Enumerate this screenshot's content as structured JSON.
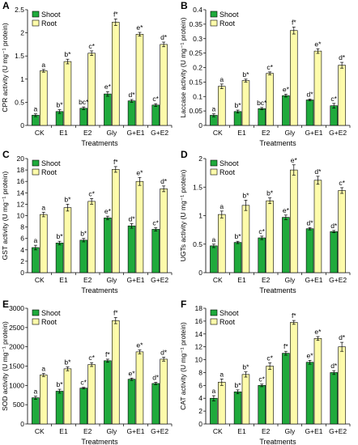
{
  "colors": {
    "shoot": "#1faa3c",
    "root": "#fdfbaa",
    "bar_edge": "#000000"
  },
  "legend_entries": [
    "Shoot",
    "Root"
  ],
  "chart_data": [
    {
      "type": "bar",
      "panel": "A",
      "categories": [
        "CK",
        "E1",
        "E2",
        "Gly",
        "G+E1",
        "G+E2"
      ],
      "xlabel": "Treatments",
      "ylabel": "CPR activity (U mg⁻¹ protein)",
      "ylim": [
        0,
        2.5
      ],
      "yticks": [
        "0",
        "0.5",
        "1",
        "1.5",
        "2",
        "2.5"
      ],
      "legend": "top-left",
      "grid": false,
      "series": [
        {
          "name": "Shoot",
          "values": [
            0.22,
            0.3,
            0.37,
            0.68,
            0.53,
            0.44
          ],
          "errors": [
            0.03,
            0.04,
            0.03,
            0.05,
            0.03,
            0.03
          ],
          "labels": [
            "a",
            "b*",
            "bc*",
            "e*",
            "d*",
            "c*"
          ]
        },
        {
          "name": "Root",
          "values": [
            1.18,
            1.38,
            1.56,
            2.23,
            1.97,
            1.75
          ],
          "errors": [
            0.03,
            0.05,
            0.05,
            0.07,
            0.04,
            0.05
          ],
          "labels": [
            "a",
            "b*",
            "c*",
            "f*",
            "e*",
            "d*"
          ]
        }
      ]
    },
    {
      "type": "bar",
      "panel": "B",
      "categories": [
        "CK",
        "E1",
        "E2",
        "Gly",
        "G+E1",
        "G+E2"
      ],
      "xlabel": "Treatments",
      "ylabel": "Laccase activity (U mg⁻¹ protein)",
      "ylim": [
        0,
        0.4
      ],
      "yticks": [
        "0",
        "0.05",
        "0.1",
        "0.15",
        "0.2",
        "0.25",
        "0.3",
        "0.35",
        "0.4"
      ],
      "legend": "top-left",
      "grid": false,
      "series": [
        {
          "name": "Shoot",
          "values": [
            0.035,
            0.048,
            0.058,
            0.103,
            0.088,
            0.068
          ],
          "errors": [
            0.005,
            0.005,
            0.004,
            0.005,
            0.003,
            0.008
          ],
          "labels": [
            "a",
            "b*",
            "bc*",
            "e*",
            "d*",
            "c*"
          ]
        },
        {
          "name": "Root",
          "values": [
            0.135,
            0.155,
            0.18,
            0.328,
            0.257,
            0.208
          ],
          "errors": [
            0.008,
            0.005,
            0.005,
            0.012,
            0.008,
            0.01
          ],
          "labels": [
            "a",
            "b*",
            "c*",
            "f*",
            "e*",
            "d*"
          ]
        }
      ]
    },
    {
      "type": "bar",
      "panel": "C",
      "categories": [
        "CK",
        "E1",
        "E2",
        "Gly",
        "G+E1",
        "G+E2"
      ],
      "xlabel": "Treatments",
      "ylabel": "GST activity (U mg⁻¹ protein)",
      "ylim": [
        0,
        20
      ],
      "yticks": [
        "0",
        "2",
        "4",
        "6",
        "8",
        "10",
        "12",
        "14",
        "16",
        "18",
        "20"
      ],
      "legend": "top-left",
      "grid": false,
      "series": [
        {
          "name": "Shoot",
          "values": [
            4.4,
            5.2,
            5.7,
            9.6,
            8.2,
            7.6
          ],
          "errors": [
            0.4,
            0.3,
            0.3,
            0.3,
            0.4,
            0.3
          ],
          "labels": [
            "a",
            "b*",
            "b*",
            "e*",
            "d*",
            "c*"
          ]
        },
        {
          "name": "Root",
          "values": [
            10.2,
            11.4,
            12.5,
            18.1,
            16.0,
            14.7
          ],
          "errors": [
            0.4,
            0.6,
            0.5,
            0.5,
            0.7,
            0.5
          ],
          "labels": [
            "a",
            "b*",
            "c*",
            "f*",
            "e*",
            "d*"
          ]
        }
      ]
    },
    {
      "type": "bar",
      "panel": "D",
      "categories": [
        "CK",
        "E1",
        "E2",
        "Gly",
        "G+E1",
        "G+E2"
      ],
      "xlabel": "Treatments",
      "ylabel": "UGTs activity (U mg⁻¹ protein)",
      "ylim": [
        0,
        2
      ],
      "yticks": [
        "0",
        "0.5",
        "1",
        "1.5",
        "2"
      ],
      "legend": "top-left",
      "grid": false,
      "series": [
        {
          "name": "Shoot",
          "values": [
            0.47,
            0.53,
            0.61,
            0.97,
            0.77,
            0.72
          ],
          "errors": [
            0.03,
            0.02,
            0.03,
            0.04,
            0.02,
            0.02
          ],
          "labels": [
            "a",
            "b*",
            "c*",
            "e*",
            "d*",
            "d*"
          ]
        },
        {
          "name": "Root",
          "values": [
            1.02,
            1.18,
            1.26,
            1.8,
            1.62,
            1.44
          ],
          "errors": [
            0.06,
            0.09,
            0.05,
            0.09,
            0.07,
            0.05
          ],
          "labels": [
            "a",
            "b*",
            "b*",
            "e*",
            "d*",
            "c*"
          ]
        }
      ]
    },
    {
      "type": "bar",
      "panel": "E",
      "categories": [
        "CK",
        "E1",
        "E2",
        "Gly",
        "G+E1",
        "G+E2"
      ],
      "xlabel": "Treatments",
      "ylabel": "SOD activity (U mg⁻¹ protein)",
      "ylim": [
        0,
        3000
      ],
      "yticks": [
        "0",
        "500",
        "1000",
        "1500",
        "2000",
        "2500",
        "3000"
      ],
      "legend": "top-left",
      "grid": false,
      "series": [
        {
          "name": "Shoot",
          "values": [
            680,
            850,
            930,
            1640,
            1160,
            1050
          ],
          "errors": [
            40,
            50,
            20,
            40,
            30,
            30
          ],
          "labels": [
            "a",
            "b*",
            "c*",
            "f*",
            "e*",
            "d*"
          ]
        },
        {
          "name": "Root",
          "values": [
            1270,
            1430,
            1540,
            2680,
            1870,
            1680
          ],
          "errors": [
            40,
            50,
            50,
            80,
            50,
            50
          ],
          "labels": [
            "a",
            "b*",
            "c*",
            "f*",
            "e*",
            "d*"
          ]
        }
      ]
    },
    {
      "type": "bar",
      "panel": "F",
      "categories": [
        "CK",
        "E1",
        "E2",
        "Gly",
        "G+E1",
        "G+E2"
      ],
      "xlabel": "Treatments",
      "ylabel": "CAT activity (U mg⁻¹ protein)",
      "ylim": [
        0,
        18
      ],
      "yticks": [
        "0",
        "2",
        "4",
        "6",
        "8",
        "10",
        "12",
        "14",
        "16",
        "18"
      ],
      "legend": "top-left",
      "grid": false,
      "series": [
        {
          "name": "Shoot",
          "values": [
            4.0,
            5.0,
            6.0,
            11.0,
            9.6,
            8.0
          ],
          "errors": [
            0.4,
            0.3,
            0.2,
            0.3,
            0.3,
            0.3
          ],
          "labels": [
            "a",
            "b*",
            "c*",
            "f*",
            "e*",
            "d*"
          ]
        },
        {
          "name": "Root",
          "values": [
            6.5,
            7.7,
            9.0,
            15.8,
            13.3,
            12.0
          ],
          "errors": [
            0.5,
            0.4,
            0.5,
            0.3,
            0.3,
            0.7
          ],
          "labels": [
            "a",
            "b*",
            "c*",
            "f*",
            "e*",
            "d*"
          ]
        }
      ]
    }
  ]
}
